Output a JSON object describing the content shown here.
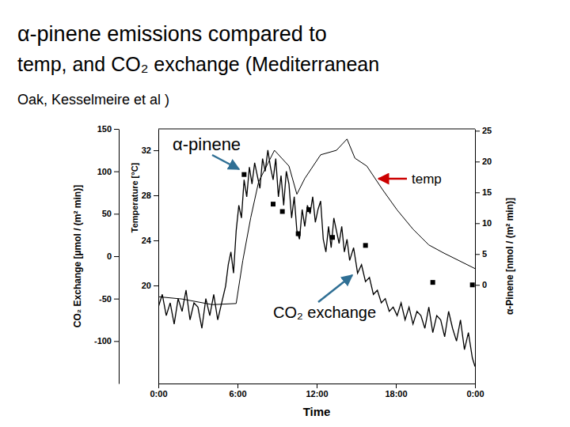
{
  "chart_data": {
    "type": "line",
    "title": [
      "α-pinene emissions  compared to",
      "temp, and CO₂ exchange (Mediterranean",
      "Oak, Kesselmeire et al )"
    ],
    "xlabel": "Time",
    "ylabel": "CO₂ Exchange [µmol / (m² min)]",
    "y2label": "α-Pinene [nmol / (m² min)]",
    "y3label": "Temperature [°C]",
    "xlim": [
      0,
      24
    ],
    "xticks": [
      {
        "value": 0,
        "label": "0:00"
      },
      {
        "value": 6,
        "label": "6:00"
      },
      {
        "value": 12,
        "label": "12:00"
      },
      {
        "value": 18,
        "label": "18:00"
      },
      {
        "value": 24,
        "label": "0:00"
      }
    ],
    "ylim": [
      -150,
      150
    ],
    "yticks": [
      -100,
      -50,
      0,
      50,
      100,
      150
    ],
    "y2lim": [
      -16,
      25.3
    ],
    "y2ticks": [
      0,
      5,
      10,
      15,
      20,
      25
    ],
    "y3lim": [
      11.3,
      33.9
    ],
    "y3ticks": [
      20,
      24,
      28,
      32
    ],
    "grid": false,
    "annotations": [
      "α-pinene",
      "temp",
      "CO₂ exchange"
    ],
    "series": [
      {
        "name": "CO₂ exchange",
        "type": "line",
        "color": "#000000",
        "line_style": "solid",
        "axis": "y",
        "x": [
          0,
          0.3,
          0.6,
          0.9,
          1.2,
          1.5,
          1.8,
          2.1,
          2.4,
          2.7,
          3.0,
          3.3,
          3.6,
          3.9,
          4.2,
          4.5,
          4.8,
          5.1,
          5.3,
          5.5,
          5.7,
          5.9,
          6.1,
          6.3,
          6.5,
          6.7,
          6.9,
          7.1,
          7.3,
          7.5,
          7.7,
          7.9,
          8.1,
          8.3,
          8.5,
          8.7,
          8.9,
          9.1,
          9.3,
          9.5,
          9.7,
          9.9,
          10.1,
          10.3,
          10.5,
          10.7,
          10.9,
          11.1,
          11.3,
          11.5,
          11.7,
          11.9,
          12.1,
          12.3,
          12.5,
          12.7,
          12.9,
          13.1,
          13.3,
          13.5,
          13.7,
          13.9,
          14.1,
          14.3,
          14.5,
          14.8,
          15.1,
          15.4,
          15.7,
          16.0,
          16.3,
          16.6,
          16.9,
          17.2,
          17.5,
          17.8,
          18.1,
          18.4,
          18.7,
          19.0,
          19.3,
          19.6,
          19.9,
          20.2,
          20.5,
          20.8,
          21.1,
          21.4,
          21.7,
          22.0,
          22.3,
          22.6,
          22.9,
          23.2,
          23.5,
          23.8,
          24
        ],
        "values": [
          -60,
          -45,
          -70,
          -55,
          -80,
          -50,
          -65,
          -40,
          -75,
          -55,
          -60,
          -85,
          -50,
          -70,
          -45,
          -75,
          -55,
          -35,
          -10,
          5,
          -20,
          30,
          60,
          45,
          90,
          70,
          105,
          85,
          110,
          95,
          80,
          115,
          100,
          125,
          105,
          90,
          115,
          70,
          95,
          60,
          100,
          85,
          45,
          70,
          30,
          20,
          55,
          35,
          60,
          50,
          70,
          40,
          55,
          65,
          20,
          5,
          35,
          10,
          45,
          30,
          15,
          35,
          5,
          20,
          -5,
          10,
          -20,
          -10,
          -30,
          -25,
          -45,
          -40,
          -55,
          -50,
          -65,
          -60,
          -70,
          -55,
          -75,
          -60,
          -80,
          -65,
          -70,
          -85,
          -60,
          -90,
          -70,
          -75,
          -95,
          -65,
          -85,
          -100,
          -75,
          -110,
          -90,
          -120,
          -130
        ]
      },
      {
        "name": "temp",
        "type": "line",
        "color": "#000000",
        "line_style": "solid",
        "axis": "y3",
        "x": [
          0,
          1.8,
          4.1,
          5.9,
          6.4,
          7.0,
          7.6,
          8.8,
          9.9,
          10.5,
          11.1,
          12.3,
          13.5,
          14.3,
          14.9,
          15.8,
          17.0,
          18.1,
          19.3,
          20.5,
          21.6,
          22.8,
          24
        ],
        "values": [
          19.0,
          18.8,
          18.3,
          18.4,
          22.2,
          26.0,
          29.2,
          32.0,
          30.6,
          28.1,
          29.5,
          31.6,
          32.0,
          33.0,
          31.3,
          30.6,
          28.5,
          26.7,
          25.0,
          23.6,
          22.9,
          22.2,
          21.5
        ]
      },
      {
        "name": "α-pinene",
        "type": "scatter",
        "color": "#000000",
        "marker": "square",
        "axis": "y2",
        "x": [
          6.5,
          8.7,
          9.4,
          10.6,
          11.4,
          13.2,
          15.7,
          20.8,
          23.8
        ],
        "values": [
          17.9,
          13.1,
          11.9,
          8.3,
          12.2,
          7.7,
          6.4,
          0.4,
          0
        ]
      }
    ]
  }
}
